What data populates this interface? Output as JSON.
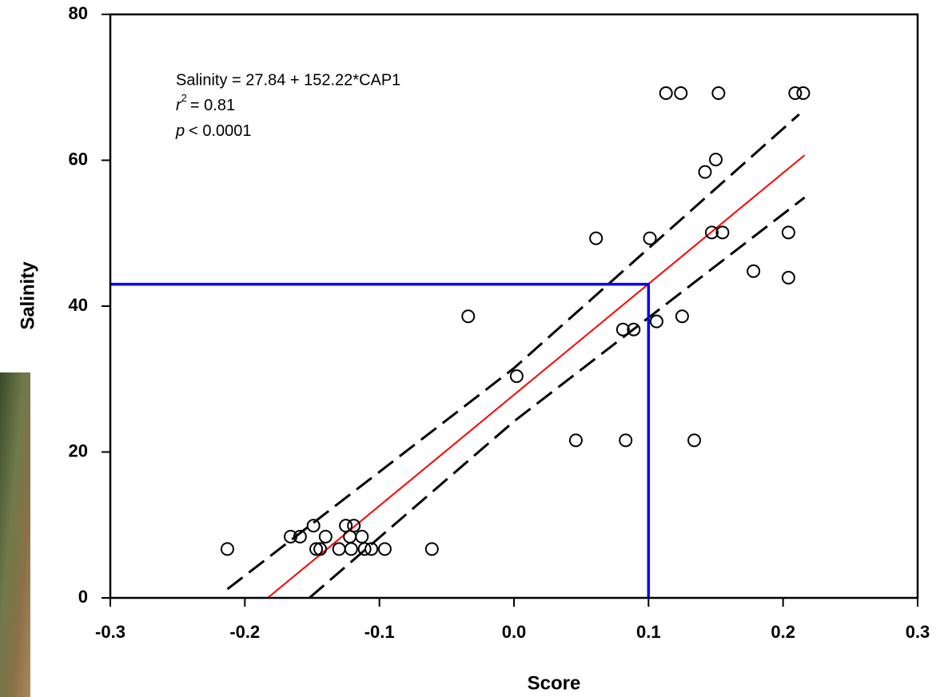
{
  "chart_data": {
    "type": "scatter",
    "xlabel": "Score",
    "ylabel": "Salinity",
    "annotation": {
      "equation": "Salinity = 27.84 + 152.22*CAP1",
      "r_symbol": "r",
      "r_exponent": "2",
      "r_text": "= 0.81",
      "p_symbol": "p",
      "p_text": "< 0.0001"
    },
    "xlim": [
      -0.3,
      0.3
    ],
    "xticks": [
      -0.3,
      -0.2,
      -0.1,
      {
        "value": 0,
        "label": "0.0"
      },
      0.1,
      0.2,
      0.3
    ],
    "ylim": [
      0,
      80
    ],
    "yticks": [
      0,
      20,
      40,
      60,
      80
    ],
    "grid": false,
    "marker_color": "#000000",
    "x": [
      -0.213,
      -0.166,
      -0.159,
      -0.149,
      -0.147,
      -0.144,
      -0.14,
      -0.13,
      -0.125,
      -0.122,
      -0.121,
      -0.119,
      -0.113,
      -0.111,
      -0.106,
      -0.096,
      -0.061,
      -0.034,
      0.002,
      0.046,
      0.061,
      0.081,
      0.083,
      0.089,
      0.101,
      0.106,
      0.113,
      0.124,
      0.125,
      0.134,
      0.142,
      0.147,
      0.15,
      0.152,
      0.155,
      0.178,
      0.204,
      0.204,
      0.209,
      0.215
    ],
    "values": [
      6.7,
      8.4,
      8.4,
      9.9,
      6.7,
      6.7,
      8.4,
      6.7,
      9.9,
      8.4,
      6.7,
      9.9,
      8.4,
      6.7,
      6.7,
      6.7,
      6.7,
      38.6,
      30.4,
      21.6,
      49.3,
      36.8,
      21.6,
      36.8,
      49.3,
      37.9,
      69.2,
      69.2,
      38.6,
      21.6,
      58.4,
      50.1,
      60.1,
      69.2,
      50.1,
      44.8,
      50.1,
      43.9,
      69.2,
      69.2
    ],
    "lines": [
      {
        "color": "#000000",
        "dashed": true,
        "x": [
          -0.213,
          0,
          0.212
        ],
        "values": [
          1.2,
          31.5,
          66.3
        ]
      },
      {
        "color": "#000000",
        "dashed": true,
        "x": [
          -0.152,
          0,
          0.216
        ],
        "values": [
          0,
          24.2,
          54.9
        ]
      },
      {
        "color": "#ff0000",
        "dashed": false,
        "x": [
          -0.183,
          0.216
        ],
        "values": [
          0,
          60.7
        ]
      },
      {
        "color": "#0000ff",
        "dashed": false,
        "x": [
          -0.3,
          0.1,
          0.1
        ],
        "values": [
          43,
          43,
          0
        ]
      }
    ]
  }
}
